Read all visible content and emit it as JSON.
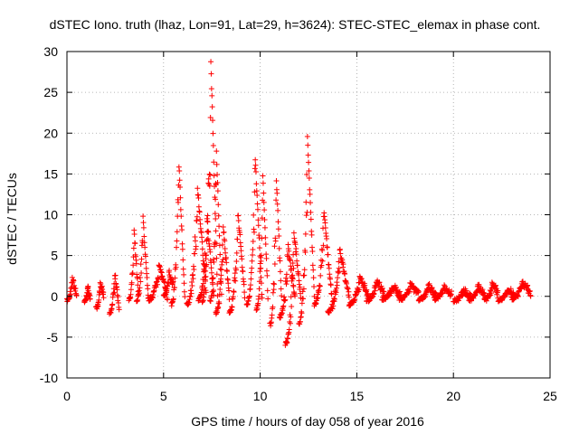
{
  "chart_data": {
    "type": "scatter",
    "title": "dSTEC Iono. truth (lhaz, Lon=91, Lat=29, h=3624): STEC-STEC_elemax in phase cont.",
    "xlabel": "GPS time / hours of day 058 of year 2016",
    "ylabel": "dSTEC  / TECUs",
    "xlim": [
      0,
      25
    ],
    "ylim": [
      -10,
      30
    ],
    "x_ticks": [
      "0",
      "5",
      "10",
      "15",
      "20",
      "25"
    ],
    "y_ticks": [
      "-10",
      "-5",
      "0",
      "5",
      "10",
      "15",
      "20",
      "25",
      "30"
    ],
    "grid": true,
    "marker": "+",
    "marker_color": "#ff0000",
    "series": [
      {
        "arcs": [
          {
            "t": [
              0.0,
              0.5
            ],
            "v": [
              0.2,
              -0.5,
              2.2
            ]
          },
          {
            "t": [
              0.9,
              1.2
            ],
            "v": [
              -0.2,
              -0.6,
              1.0
            ]
          },
          {
            "t": [
              1.5,
              1.9
            ],
            "v": [
              0.0,
              -1.5,
              1.5
            ]
          },
          {
            "t": [
              2.2,
              2.7
            ],
            "v": [
              -1.5,
              -2.0,
              3.0
            ]
          },
          {
            "t": [
              3.2,
              3.7
            ],
            "v": [
              0.0,
              -0.3,
              7.8
            ]
          },
          {
            "t": [
              3.6,
              4.2
            ],
            "v": [
              0.0,
              -0.5,
              9.8
            ]
          },
          {
            "t": [
              4.2,
              5.2
            ],
            "v": [
              0.0,
              -0.4,
              4.0
            ]
          },
          {
            "t": [
              5.0,
              5.5
            ],
            "v": [
              1.5,
              0.0,
              3.0
            ]
          },
          {
            "t": [
              5.4,
              6.1
            ],
            "v": [
              -0.5,
              -1.0,
              16.8
            ]
          },
          {
            "t": [
              6.2,
              7.2
            ],
            "v": [
              0.5,
              -1.0,
              13.5
            ]
          },
          {
            "t": [
              6.8,
              7.6
            ],
            "v": [
              0.0,
              -0.5,
              10.0
            ]
          },
          {
            "t": [
              7.0,
              7.8
            ],
            "v": [
              0.0,
              -0.5,
              29.5
            ]
          },
          {
            "t": [
              7.4,
              8.0
            ],
            "v": [
              0.0,
              -0.5,
              18.0
            ]
          },
          {
            "t": [
              7.7,
              8.4
            ],
            "v": [
              0.0,
              -2.0,
              8.6
            ]
          },
          {
            "t": [
              8.4,
              9.2
            ],
            "v": [
              0.0,
              -2.0,
              10.5
            ]
          },
          {
            "t": [
              9.3,
              10.1
            ],
            "v": [
              -0.5,
              -1.0,
              17.0
            ]
          },
          {
            "t": [
              9.8,
              10.4
            ],
            "v": [
              0.0,
              -1.5,
              15.0
            ]
          },
          {
            "t": [
              10.5,
              11.1
            ],
            "v": [
              0.0,
              -3.5,
              14.8
            ]
          },
          {
            "t": [
              11.0,
              11.8
            ],
            "v": [
              0.0,
              -2.5,
              6.2
            ]
          },
          {
            "t": [
              11.3,
              12.1
            ],
            "v": [
              0.0,
              -5.8,
              8.0
            ]
          },
          {
            "t": [
              12.0,
              12.8
            ],
            "v": [
              0.0,
              -3.5,
              19.8
            ]
          },
          {
            "t": [
              12.8,
              13.7
            ],
            "v": [
              0.0,
              -1.0,
              10.5
            ]
          },
          {
            "t": [
              13.5,
              14.6
            ],
            "v": [
              0.0,
              -2.0,
              5.8
            ]
          },
          {
            "t": [
              14.6,
              15.6
            ],
            "v": [
              0.0,
              -1.0,
              2.5
            ]
          },
          {
            "t": [
              15.5,
              16.4
            ],
            "v": [
              0.5,
              -0.5,
              2.0
            ]
          },
          {
            "t": [
              16.3,
              17.3
            ],
            "v": [
              0.0,
              -0.3,
              1.2
            ]
          },
          {
            "t": [
              17.2,
              18.2
            ],
            "v": [
              0.5,
              -0.3,
              1.5
            ]
          },
          {
            "t": [
              18.2,
              19.1
            ],
            "v": [
              0.0,
              -0.4,
              1.2
            ]
          },
          {
            "t": [
              19.0,
              19.9
            ],
            "v": [
              0.3,
              -0.3,
              1.0
            ]
          },
          {
            "t": [
              20.0,
              20.9
            ],
            "v": [
              0.0,
              -0.5,
              0.8
            ]
          },
          {
            "t": [
              20.8,
              21.6
            ],
            "v": [
              0.2,
              -0.4,
              1.2
            ]
          },
          {
            "t": [
              21.6,
              22.3
            ],
            "v": [
              0.5,
              -0.4,
              1.5
            ]
          },
          {
            "t": [
              22.3,
              23.2
            ],
            "v": [
              0.0,
              -0.4,
              0.8
            ]
          },
          {
            "t": [
              23.0,
              24.0
            ],
            "v": [
              0.3,
              -0.3,
              1.8
            ]
          }
        ]
      }
    ]
  }
}
